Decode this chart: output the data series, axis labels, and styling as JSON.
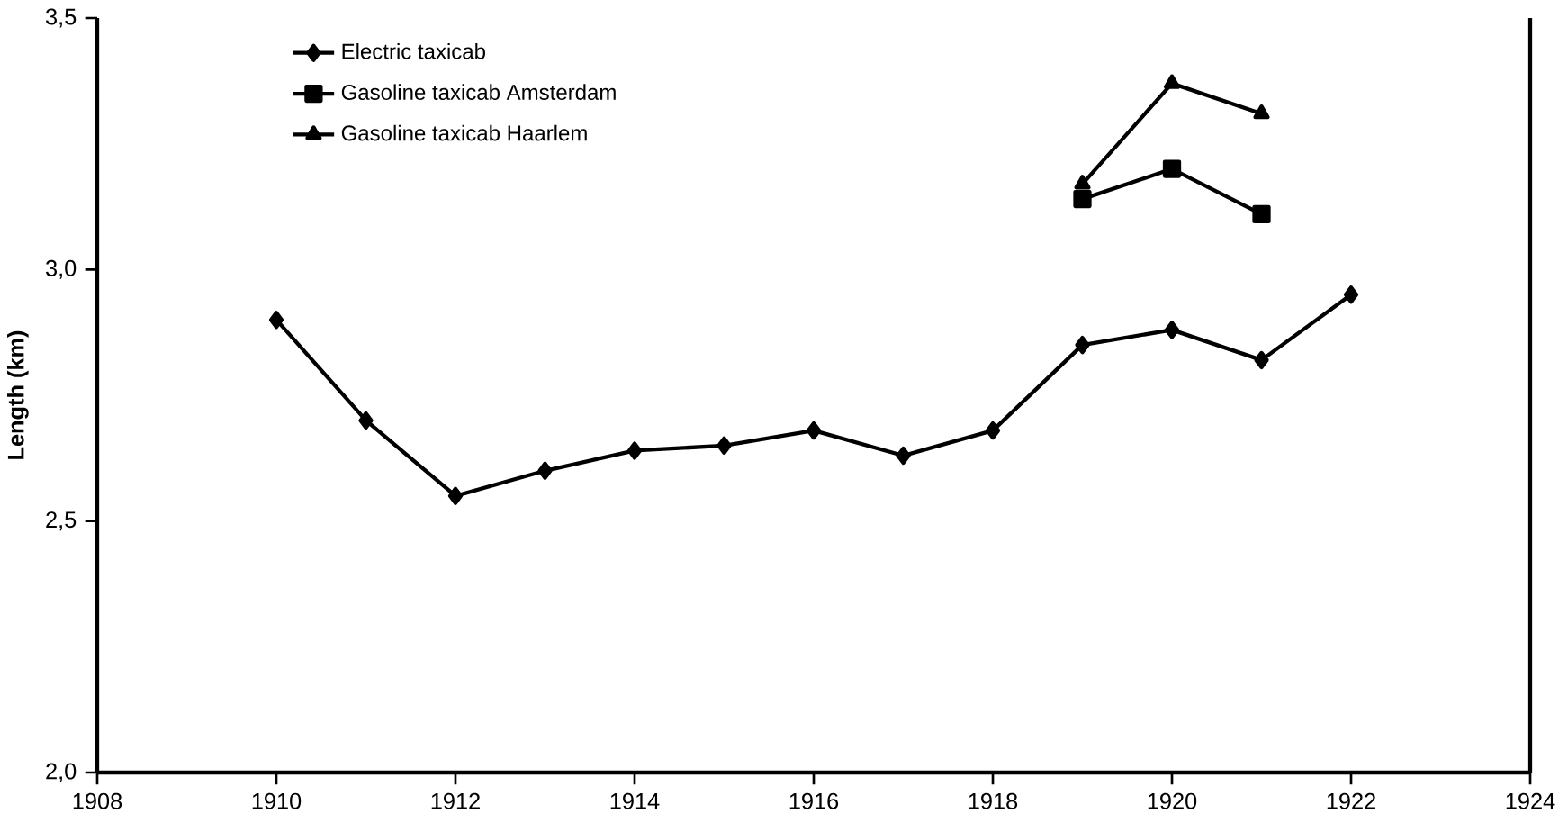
{
  "chart_data": {
    "type": "line",
    "ylabel": "Length (km)",
    "x": [
      1910,
      1911,
      1912,
      1913,
      1914,
      1915,
      1916,
      1917,
      1918,
      1919,
      1920,
      1921,
      1922
    ],
    "series": [
      {
        "name": "Electric taxicab",
        "color": "#000000",
        "marker": "diamond",
        "values": [
          2.9,
          2.7,
          2.55,
          2.6,
          2.64,
          2.65,
          2.68,
          2.63,
          2.68,
          2.85,
          2.88,
          2.82,
          2.95
        ]
      },
      {
        "name": "Gasoline taxicab Amsterdam",
        "color": "#000000",
        "marker": "square",
        "x": [
          1919,
          1920,
          1921
        ],
        "values": [
          3.14,
          3.2,
          3.11
        ]
      },
      {
        "name": "Gasoline taxicab Haarlem",
        "color": "#000000",
        "marker": "triangle",
        "x": [
          1919,
          1920,
          1921
        ],
        "values": [
          3.17,
          3.37,
          3.31
        ]
      }
    ],
    "xlim": [
      1908,
      1924
    ],
    "xticks": [
      1908,
      1910,
      1912,
      1914,
      1916,
      1918,
      1920,
      1922,
      1924
    ],
    "ylim": [
      2.0,
      3.5
    ],
    "yticks": [
      {
        "value": 2.0,
        "label": "2,0"
      },
      {
        "value": 2.5,
        "label": "2,5"
      },
      {
        "value": 3.0,
        "label": "3,0"
      },
      {
        "value": 3.5,
        "label": "3,5"
      }
    ],
    "grid": false,
    "legend": "top left",
    "line_style": "solid"
  }
}
